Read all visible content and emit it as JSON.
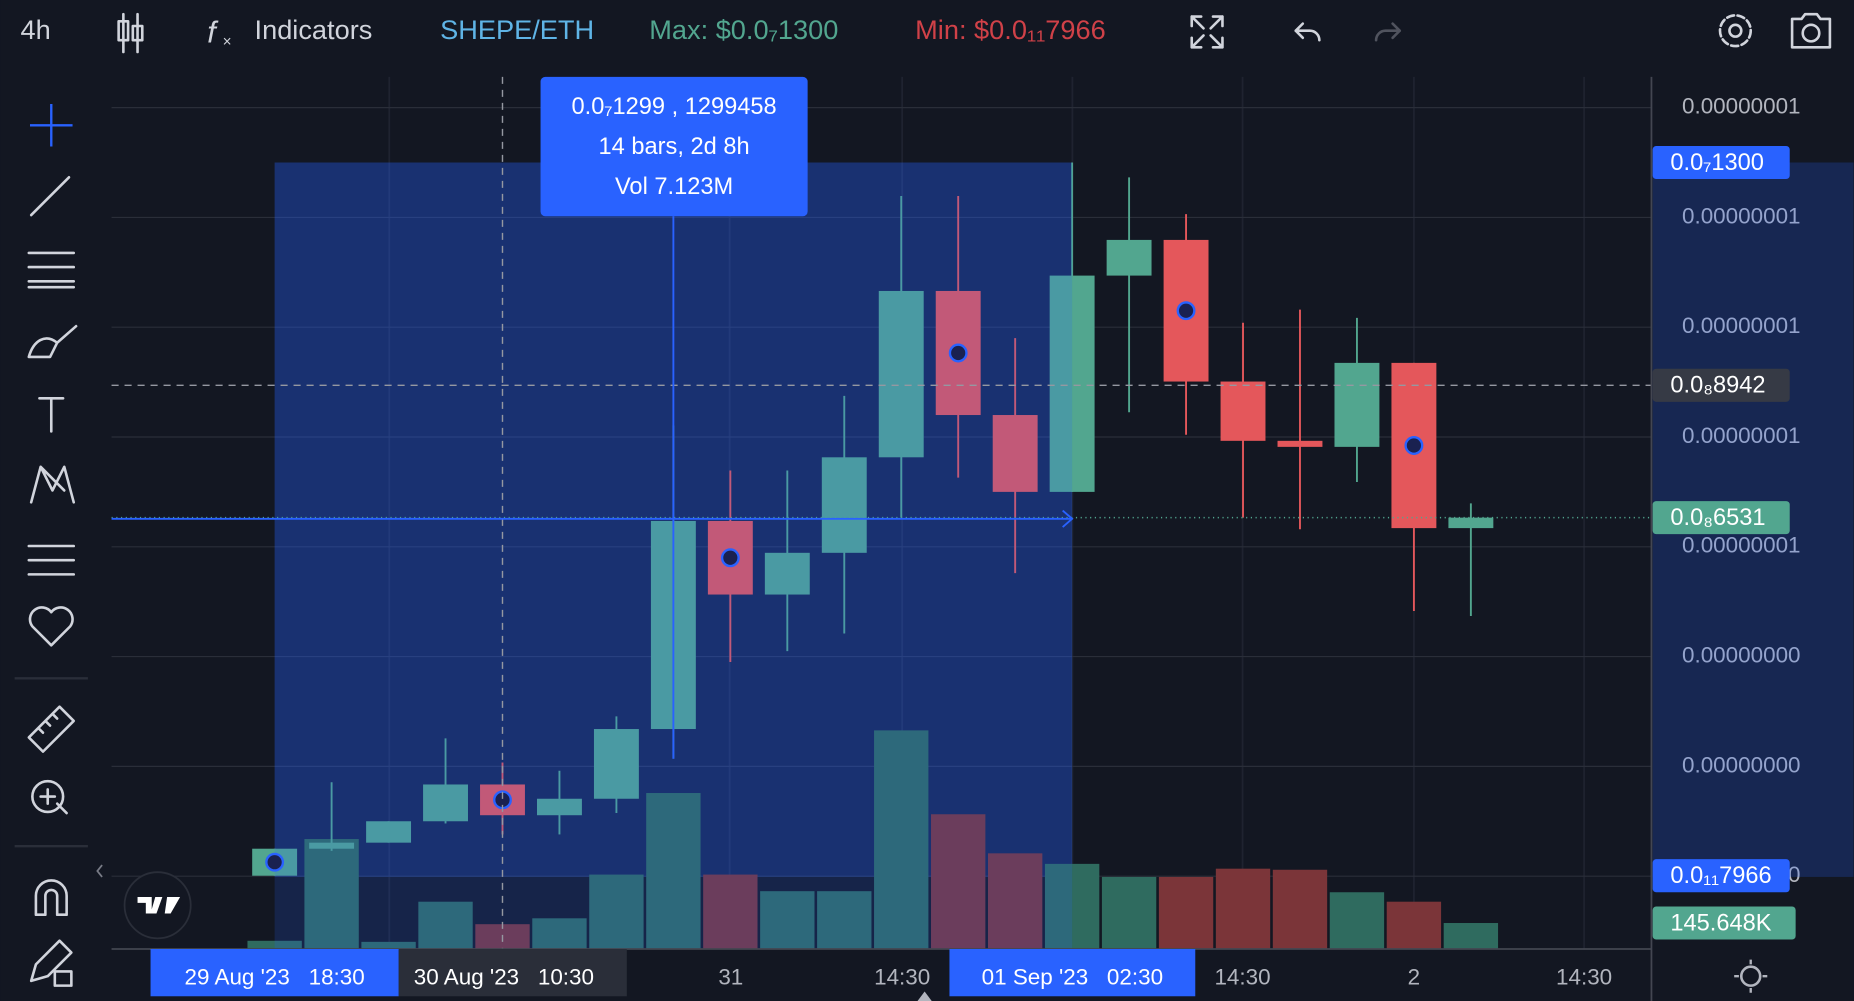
{
  "toolbar": {
    "interval": "4h",
    "indicators": "Indicators",
    "symbol": "SHEPE/ETH",
    "max": "Max: $0.0₇1300",
    "min": "Min: $0.0₁₁7966"
  },
  "chart_data": {
    "type": "candlestick",
    "open": [
      7.966e-12,
      5e-10,
      6.1e-10,
      1e-09,
      1.67e-09,
      1.11e-09,
      1.41e-09,
      2.68e-09,
      6.47e-09,
      5.13e-09,
      5.89e-09,
      7.63e-09,
      1.066e-08,
      8.4e-09,
      7e-09,
      1.094e-08,
      1.159e-08,
      9.01e-09,
      7.93e-09,
      7.82e-09,
      9.35e-09,
      6.34e-09
    ],
    "high": [
      5e-10,
      1.71e-09,
      1e-09,
      2.51e-09,
      2.07e-09,
      1.92e-09,
      2.91e-09,
      8.21e-09,
      7.39e-09,
      7.39e-09,
      8.75e-09,
      1.239e-08,
      1.239e-08,
      9.8e-09,
      1.3e-08,
      1.273e-08,
      1.206e-08,
      1.008e-08,
      1.032e-08,
      1.017e-08,
      9.35e-09,
      6.79e-09
    ],
    "low": [
      7.966e-12,
      4.6e-10,
      6.1e-10,
      9.6e-10,
      7.6e-10,
      7.6e-10,
      1.15e-09,
      2.14e-09,
      3.9e-09,
      4.1e-09,
      4.42e-09,
      6.53e-09,
      7.26e-09,
      5.52e-09,
      7e-09,
      8.45e-09,
      8.04e-09,
      6.53e-09,
      6.32e-09,
      7.18e-09,
      4.83e-09,
      4.74e-09
    ],
    "close": [
      5e-10,
      6.1e-10,
      1e-09,
      1.67e-09,
      1.11e-09,
      1.41e-09,
      2.68e-09,
      6.47e-09,
      5.13e-09,
      5.89e-09,
      7.63e-09,
      1.066e-08,
      8.4e-09,
      7e-09,
      1.094e-08,
      1.159e-08,
      9.01e-09,
      7.93e-09,
      7.82e-09,
      9.35e-09,
      6.34e-09,
      6.531e-09
    ],
    "marked": [
      true,
      false,
      false,
      false,
      true,
      false,
      false,
      false,
      true,
      false,
      false,
      false,
      true,
      false,
      false,
      false,
      true,
      false,
      false,
      false,
      true,
      false
    ],
    "up_color": "#52a68f",
    "down_color": "#e4575b",
    "volume": {
      "values": [
        46000,
        616000,
        40000,
        265000,
        139000,
        172000,
        417000,
        874000,
        417000,
        324000,
        324000,
        1225000,
        755000,
        536000,
        477000,
        404000,
        404000,
        450000,
        444000,
        318000,
        265000,
        145648
      ],
      "value_labels": [
        null,
        null,
        null,
        null,
        null,
        null,
        null,
        null,
        null,
        null,
        null,
        null,
        null,
        null,
        null,
        null,
        null,
        null,
        null,
        null,
        null,
        "145.648K"
      ],
      "up_color": "#2f6b5f",
      "down_color": "#7b3539"
    },
    "ylim": [
      -1.327e-09,
      1.4561e-08
    ],
    "yticks": [
      {
        "value": 1.4e-08,
        "label": "0.00000001"
      },
      {
        "value": 1.2e-08,
        "label": "0.00000001"
      },
      {
        "value": 1e-08,
        "label": "0.00000001"
      },
      {
        "value": 8e-09,
        "label": "0.00000001"
      },
      {
        "value": 6e-09,
        "label": "0.00000001"
      },
      {
        "value": 4e-09,
        "label": "0.00000000"
      },
      {
        "value": 2e-09,
        "label": "0.00000000"
      },
      {
        "value": 0,
        "label": "0.00000000"
      }
    ],
    "grid": true,
    "price_labels": [
      {
        "value": 1.3e-08,
        "label": "0.0₇1300",
        "color": "#2962ff"
      },
      {
        "value": 8.942e-09,
        "label": "0.0₈8942",
        "color": "#363a45"
      },
      {
        "value": 6.531e-09,
        "label": "0.0₈6531",
        "color": "#52a68f"
      },
      {
        "value": 7.966e-12,
        "label": "0.0₁₁7966",
        "color": "#2962ff"
      }
    ],
    "x_labels": [
      "29 Aug '23   18:30",
      "30 Aug '23   10:30",
      "31",
      "14:30",
      "01 Sep '23   02:30",
      "14:30",
      "2",
      "14:30"
    ],
    "measure": {
      "price": "0.0₇1299 , 1299458",
      "bars": "14 bars, 2d 8h",
      "volume": "Vol 7.123M"
    }
  }
}
